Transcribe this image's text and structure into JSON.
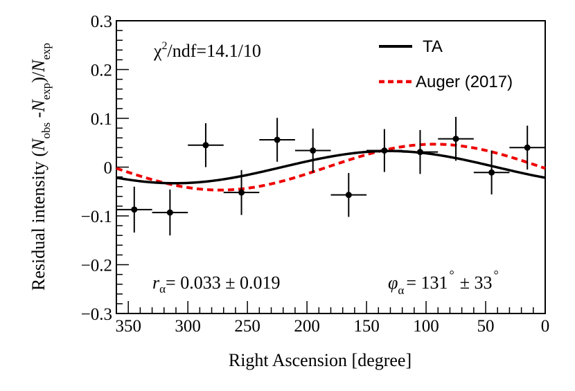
{
  "chart_data": {
    "type": "scatter",
    "xlabel": "Right Ascension [degree]",
    "ylabel": "Residual intensity (N_obs-N_exp)/N_exp",
    "xlim": [
      360,
      0
    ],
    "ylim": [
      -0.3,
      0.3
    ],
    "x_ticks": [
      350,
      300,
      250,
      200,
      150,
      100,
      50,
      0
    ],
    "y_ticks": [
      -0.3,
      -0.2,
      -0.1,
      0,
      0.1,
      0.2,
      0.3
    ],
    "y_tick_labels": [
      "−0.3",
      "−0.2",
      "−0.1",
      "0",
      "0.1",
      "0.2",
      "0.3"
    ],
    "x_tick_labels": [
      "350",
      "300",
      "250",
      "200",
      "150",
      "100",
      "50",
      "0"
    ],
    "points": {
      "name": "Data",
      "x": [
        345,
        315,
        285,
        255,
        225,
        195,
        165,
        135,
        105,
        75,
        45,
        15
      ],
      "y": [
        -0.087,
        -0.093,
        0.045,
        -0.052,
        0.056,
        0.034,
        -0.057,
        0.034,
        0.031,
        0.058,
        -0.011,
        0.04
      ],
      "xerr": 15,
      "yerr": [
        0.047,
        0.047,
        0.045,
        0.046,
        0.045,
        0.045,
        0.045,
        0.044,
        0.045,
        0.045,
        0.045,
        0.045
      ]
    },
    "series": [
      {
        "name": "TA",
        "style": "solid",
        "color": "#000000",
        "amplitude": 0.033,
        "phase_deg": 131
      },
      {
        "name": "Auger (2017)",
        "style": "dashed",
        "color": "#ee0000",
        "amplitude": 0.047,
        "phase_deg": 93
      }
    ],
    "legend": {
      "position": "top-right",
      "entries": [
        "TA",
        "Auger (2017)"
      ]
    },
    "annotations": {
      "chi2_sym": "χ",
      "chi2_exp": "2",
      "chi2_rest": "/ndf=14.1/10",
      "r_sym": "r",
      "r_sub": "α",
      "r_value": "= 0.033 ± 0.019",
      "phi_sym": "φ",
      "phi_sub": "α",
      "phi_value": "= 131",
      "phi_pm": "± 33",
      "degree_mark": "°"
    },
    "ylabel_parts": {
      "prefix": "Residual intensity (",
      "n": "N",
      "obs": "obs",
      "minus": " -",
      "exp": "exp",
      "middle": ")/"
    }
  }
}
